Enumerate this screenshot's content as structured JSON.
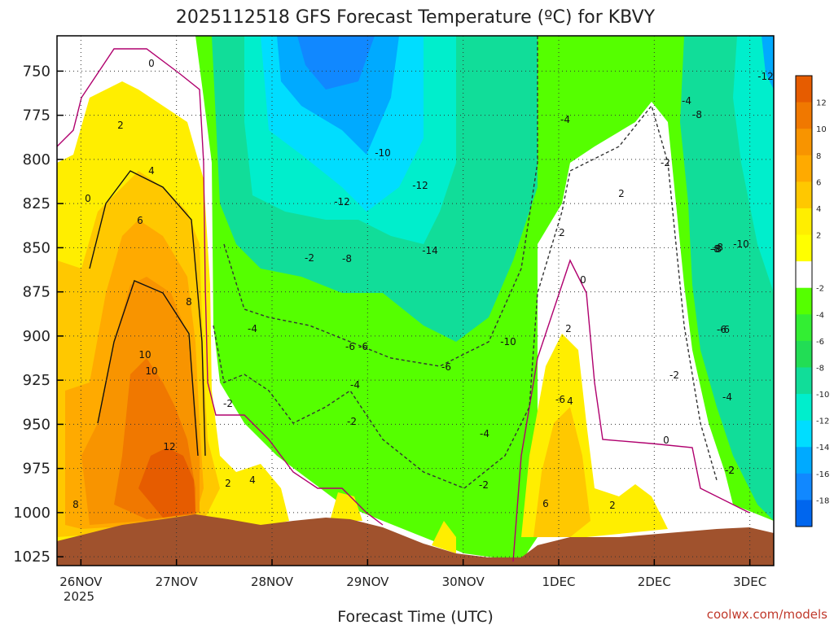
{
  "chart_data": {
    "type": "heatmap",
    "title": "2025112518 GFS Forecast Temperature (ºC) for KBVY",
    "xlabel": "Forecast Time (UTC)",
    "ylabel": "",
    "credit": "coolwx.com/models",
    "y_axis": {
      "reversed": true,
      "range": [
        730,
        1030
      ],
      "ticks": [
        "750",
        "775",
        "800",
        "825",
        "850",
        "875",
        "900",
        "925",
        "950",
        "975",
        "1000",
        "1025"
      ]
    },
    "x_axis": {
      "range_days": [
        "25 Nov 2025 18Z",
        "3 Dec 2025 06Z"
      ],
      "ticks": [
        "26NOV",
        "27NOV",
        "28NOV",
        "29NOV",
        "30NOV",
        "1DEC",
        "2DEC",
        "3DEC"
      ],
      "year_label": "2025"
    },
    "grid": true,
    "colorbar": {
      "position": "right",
      "tick_labels": [
        "12",
        "10",
        "8",
        "6",
        "4",
        "2",
        "-2",
        "-4",
        "-6",
        "-8",
        "-10",
        "-12",
        "-14",
        "-16",
        "-18"
      ],
      "colors": [
        "#e65c00",
        "#f07800",
        "#f89400",
        "#ffaa00",
        "#ffc800",
        "#ffee00",
        "#ffff00",
        "#ffffff",
        "#55ff00",
        "#33ee33",
        "#22dd55",
        "#11dd99",
        "#00eecc",
        "#00ddff",
        "#00aaff",
        "#1188ff",
        "#0066ee"
      ]
    },
    "contour_labels": [
      "0",
      "2",
      "4",
      "6",
      "8",
      "10",
      "10",
      "12",
      "8",
      "0",
      "-2",
      "2",
      "4",
      "-4",
      "-2",
      "-6",
      "-4",
      "-2",
      "-8",
      "-10",
      "-12",
      "-14",
      "-12",
      "-10",
      "-6",
      "-4",
      "-2",
      "-6",
      "2",
      "0",
      "2",
      "4",
      "6",
      "2",
      "-4",
      "-2",
      "0",
      "-2",
      "2",
      "-6",
      "-4",
      "-8",
      "-8",
      "-10",
      "-12",
      "-8",
      "-6",
      "-8",
      "-2",
      "-6",
      "-4",
      "-2"
    ],
    "regions": [
      {
        "name": "ground",
        "color": "#a0522d"
      }
    ]
  }
}
